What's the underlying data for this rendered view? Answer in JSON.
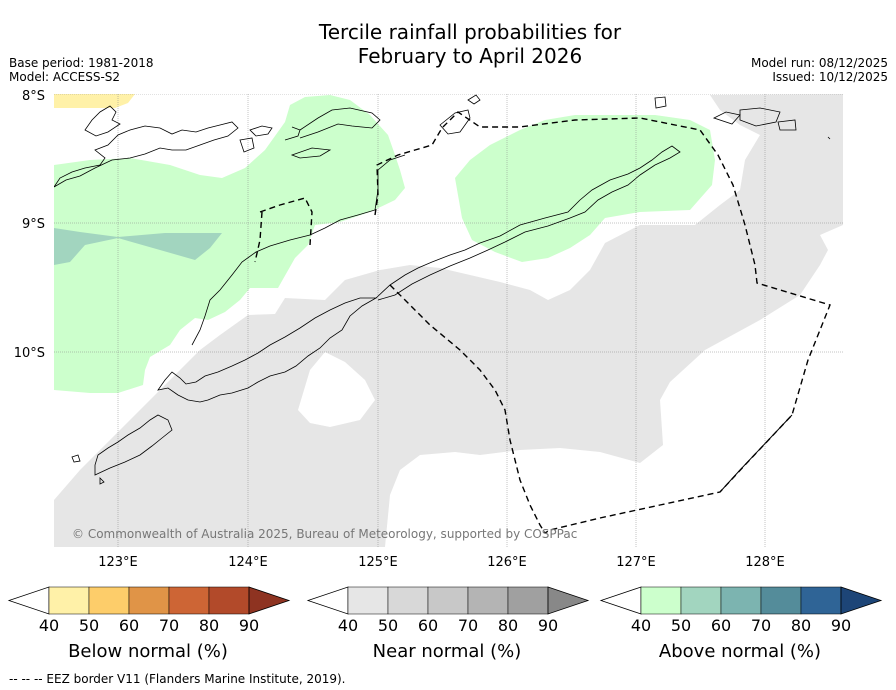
{
  "title": {
    "line1": "Tercile rainfall probabilities for",
    "line2": "February to April 2026"
  },
  "meta": {
    "base_period": "Base period: 1981-2018",
    "model": "Model: ACCESS-S2",
    "model_run": "Model run: 08/12/2025",
    "issued": "Issued: 10/12/2025"
  },
  "map": {
    "lat_labels": [
      "8°S",
      "9°S",
      "10°S"
    ],
    "lon_labels": [
      "123°E",
      "124°E",
      "125°E",
      "126°E",
      "127°E",
      "128°E"
    ],
    "copyright": "© Commonwealth of Australia 2025, Bureau of Meteorology, supported by COSPPac",
    "colors": {
      "near_normal": "#e6e6e6",
      "above_normal_40": "#ccffcc",
      "above_normal_50": "#a2d5bf",
      "below_normal_40": "#fff1a8",
      "coast": "#000000",
      "eez": "#000000"
    }
  },
  "colorbars": [
    {
      "name": "below",
      "label": "Below normal (%)",
      "ticks": [
        "40",
        "50",
        "60",
        "70",
        "80",
        "90"
      ],
      "colors": [
        "#ffffff",
        "#fff1a8",
        "#fdcd6a",
        "#e09447",
        "#cd6535",
        "#b24a2a",
        "#8e3321"
      ]
    },
    {
      "name": "near",
      "label": "Near normal (%)",
      "ticks": [
        "40",
        "50",
        "60",
        "70",
        "80",
        "90"
      ],
      "colors": [
        "#ffffff",
        "#e6e6e6",
        "#d8d8d8",
        "#c8c8c8",
        "#b4b4b4",
        "#a0a0a0",
        "#888888"
      ]
    },
    {
      "name": "above",
      "label": "Above normal (%)",
      "ticks": [
        "40",
        "50",
        "60",
        "70",
        "80",
        "90"
      ],
      "colors": [
        "#ffffff",
        "#ccffcc",
        "#a2d5bf",
        "#7cb4b0",
        "#548c9a",
        "#2f6496",
        "#1d4577"
      ]
    }
  ],
  "footer": "--  --  -- EEZ border V11 (Flanders Marine Institute, 2019)."
}
